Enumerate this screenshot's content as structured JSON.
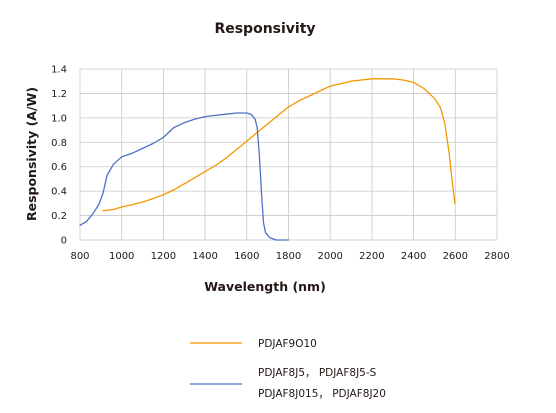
{
  "chart_data": {
    "type": "line",
    "title": "Responsivity",
    "xlabel": "Wavelength (nm)",
    "ylabel": "Responsivity (A/W)",
    "xlim": [
      800,
      2800
    ],
    "ylim": [
      0,
      1.4
    ],
    "x_ticks": [
      "800",
      "1000",
      "1200",
      "1400",
      "1600",
      "1800",
      "2000",
      "2200",
      "2400",
      "2600",
      "2800"
    ],
    "y_ticks": [
      "0",
      "0.2",
      "0.4",
      "0.6",
      "0.8",
      "1.0",
      "1.2",
      "1.4"
    ],
    "grid": true,
    "legend_position": "bottom",
    "series": [
      {
        "name": "PDJAF9O10",
        "color": "#f39800",
        "points": [
          [
            910,
            0.24
          ],
          [
            960,
            0.25
          ],
          [
            1000,
            0.27
          ],
          [
            1050,
            0.29
          ],
          [
            1100,
            0.31
          ],
          [
            1150,
            0.34
          ],
          [
            1200,
            0.37
          ],
          [
            1250,
            0.41
          ],
          [
            1300,
            0.46
          ],
          [
            1350,
            0.51
          ],
          [
            1400,
            0.56
          ],
          [
            1450,
            0.61
          ],
          [
            1500,
            0.67
          ],
          [
            1550,
            0.74
          ],
          [
            1600,
            0.81
          ],
          [
            1650,
            0.88
          ],
          [
            1700,
            0.95
          ],
          [
            1750,
            1.02
          ],
          [
            1800,
            1.09
          ],
          [
            1850,
            1.14
          ],
          [
            1900,
            1.18
          ],
          [
            1950,
            1.22
          ],
          [
            2000,
            1.26
          ],
          [
            2050,
            1.28
          ],
          [
            2100,
            1.3
          ],
          [
            2150,
            1.31
          ],
          [
            2200,
            1.32
          ],
          [
            2250,
            1.32
          ],
          [
            2300,
            1.32
          ],
          [
            2350,
            1.31
          ],
          [
            2400,
            1.29
          ],
          [
            2450,
            1.24
          ],
          [
            2500,
            1.16
          ],
          [
            2530,
            1.08
          ],
          [
            2550,
            0.95
          ],
          [
            2570,
            0.72
          ],
          [
            2585,
            0.48
          ],
          [
            2598,
            0.3
          ]
        ]
      },
      {
        "names": [
          "PDJAF8J5， PDJAF8J5-S",
          "PDJAF8J015， PDJAF8J20"
        ],
        "color": "#4f70c5",
        "points": [
          [
            800,
            0.12
          ],
          [
            830,
            0.15
          ],
          [
            860,
            0.21
          ],
          [
            890,
            0.29
          ],
          [
            910,
            0.38
          ],
          [
            930,
            0.53
          ],
          [
            960,
            0.62
          ],
          [
            1000,
            0.68
          ],
          [
            1050,
            0.71
          ],
          [
            1100,
            0.75
          ],
          [
            1150,
            0.79
          ],
          [
            1200,
            0.84
          ],
          [
            1250,
            0.92
          ],
          [
            1300,
            0.96
          ],
          [
            1350,
            0.99
          ],
          [
            1400,
            1.01
          ],
          [
            1450,
            1.02
          ],
          [
            1500,
            1.03
          ],
          [
            1550,
            1.04
          ],
          [
            1600,
            1.04
          ],
          [
            1620,
            1.03
          ],
          [
            1640,
            0.99
          ],
          [
            1650,
            0.92
          ],
          [
            1660,
            0.7
          ],
          [
            1670,
            0.4
          ],
          [
            1680,
            0.14
          ],
          [
            1690,
            0.06
          ],
          [
            1710,
            0.02
          ],
          [
            1740,
            0.0
          ],
          [
            1800,
            0.0
          ]
        ]
      }
    ],
    "legend": [
      {
        "label": "PDJAF9O10",
        "color": "#f39800"
      },
      {
        "label": "PDJAF8J5， PDJAF8J5-S",
        "label2": "PDJAF8J015， PDJAF8J20",
        "color": "#4f70c5"
      }
    ]
  }
}
